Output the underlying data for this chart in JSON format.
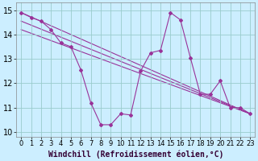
{
  "background_color": "#cceeff",
  "grid_color": "#99cccc",
  "line_color": "#993399",
  "xlim": [
    -0.5,
    23.5
  ],
  "ylim": [
    9.8,
    15.3
  ],
  "xticks": [
    0,
    1,
    2,
    3,
    4,
    5,
    6,
    7,
    8,
    9,
    10,
    11,
    12,
    13,
    14,
    15,
    16,
    17,
    18,
    19,
    20,
    21,
    22,
    23
  ],
  "yticks": [
    10,
    11,
    12,
    13,
    14,
    15
  ],
  "xlabel": "Windchill (Refroidissement éolien,°C)",
  "main_x": [
    0,
    1,
    2,
    3,
    4,
    5,
    6,
    7,
    8,
    9,
    10,
    11,
    12,
    13,
    14,
    15,
    16,
    17,
    18,
    19,
    20,
    21,
    22,
    23
  ],
  "main_y": [
    14.9,
    14.7,
    14.55,
    14.2,
    13.65,
    13.5,
    12.55,
    11.2,
    10.3,
    10.3,
    10.75,
    10.7,
    12.5,
    13.25,
    13.35,
    14.9,
    14.6,
    13.05,
    11.55,
    11.55,
    12.1,
    11.0,
    11.0,
    10.75
  ],
  "trend_lines": [
    {
      "x": [
        0,
        23
      ],
      "y": [
        14.9,
        10.75
      ]
    },
    {
      "x": [
        0,
        23
      ],
      "y": [
        14.55,
        10.75
      ]
    },
    {
      "x": [
        0,
        23
      ],
      "y": [
        14.2,
        10.75
      ]
    }
  ],
  "tick_fontsize": 6,
  "label_fontsize": 7
}
